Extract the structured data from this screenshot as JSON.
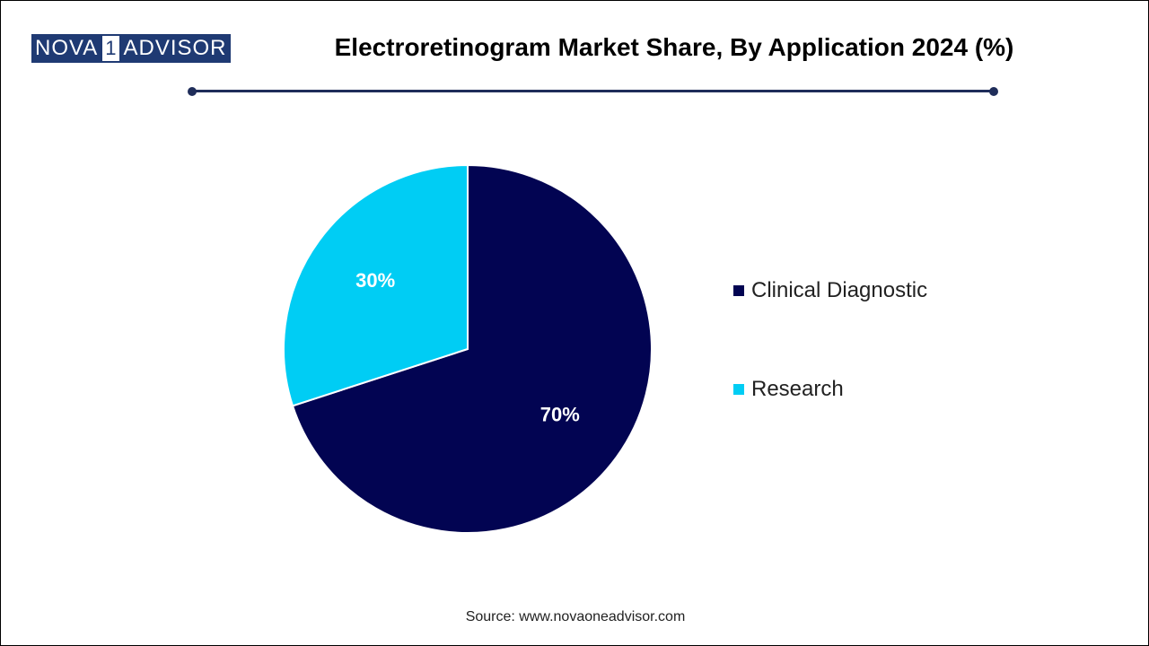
{
  "logo": {
    "part_a": "NOVA",
    "part_num": "1",
    "part_b": "ADVISOR"
  },
  "title": "Electroretinogram Market Share, By Application 2024 (%)",
  "source": "Source: www.novaoneadvisor.com",
  "colors": {
    "clinical": "#020452",
    "research": "#00cdf4",
    "divider": "#1f2d5a",
    "logo": "#1f3a73"
  },
  "chart_data": {
    "type": "pie",
    "title": "Electroretinogram Market Share, By Application 2024 (%)",
    "unit": "%",
    "legend_position": "right",
    "slices": [
      {
        "label": "Clinical Diagnostic",
        "value": 70,
        "value_label": "70%",
        "color": "#020452"
      },
      {
        "label": "Research",
        "value": 30,
        "value_label": "30%",
        "color": "#00cdf4"
      }
    ]
  }
}
